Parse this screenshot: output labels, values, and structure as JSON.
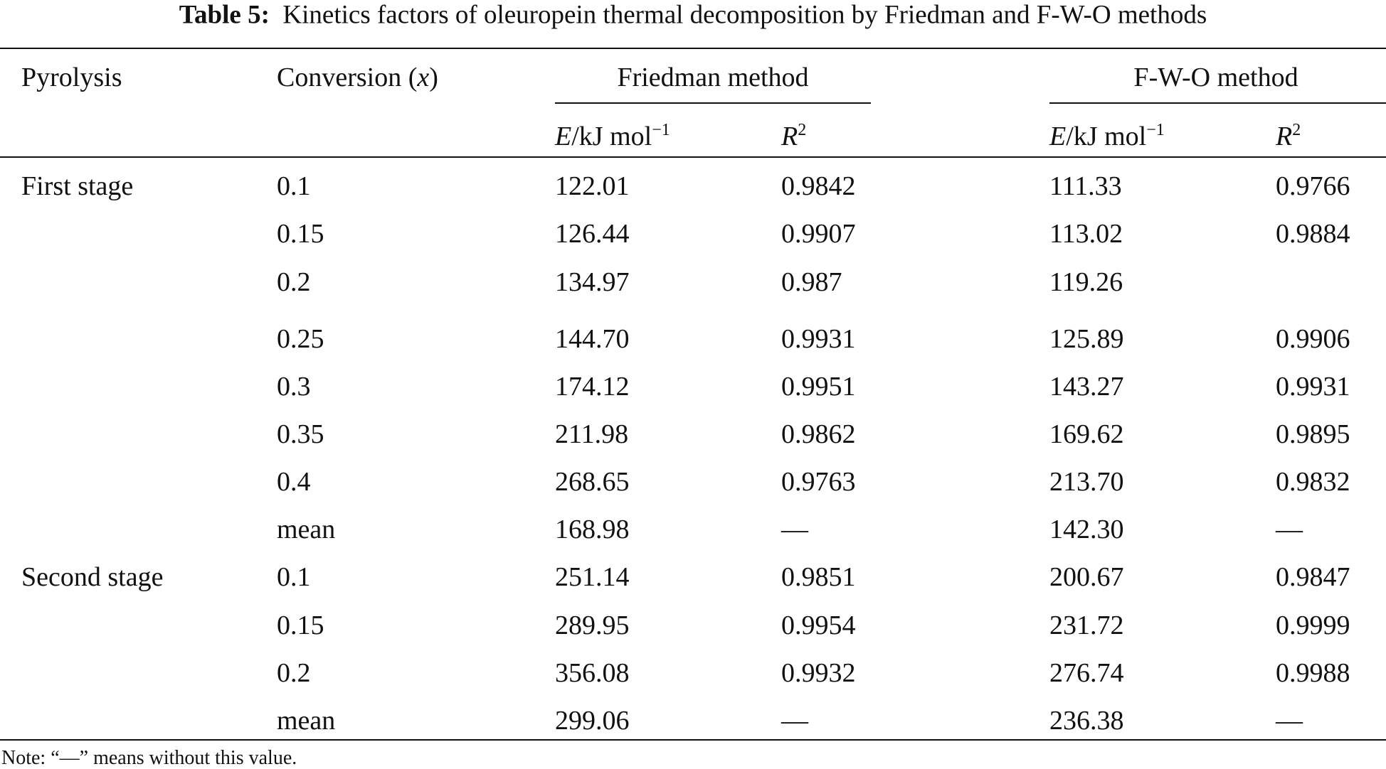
{
  "title": {
    "label": "Table 5:",
    "text": "Kinetics factors of oleuropein thermal decomposition by Friedman and F-W-O methods"
  },
  "table": {
    "headers": {
      "pyrolysis": "Pyrolysis",
      "conversion": {
        "text": "Conversion (",
        "variable": "x",
        "close": ")"
      },
      "friedman": "Friedman method",
      "fwo": "F-W-O method",
      "energy": {
        "symbol": "E",
        "unit": "/kJ mol",
        "exponent": "−1"
      },
      "r2": {
        "symbol": "R",
        "exponent": "2"
      }
    },
    "groups": [
      {
        "stage": "First stage",
        "rows": [
          [
            "0.1",
            "122.01",
            "0.9842",
            "111.33",
            "0.9766"
          ],
          [
            "0.15",
            "126.44",
            "0.9907",
            "113.02",
            "0.9884"
          ],
          [
            "0.2",
            "134.97",
            "0.987",
            "119.26",
            null
          ],
          [
            "0.25",
            "144.70",
            "0.9931",
            "125.89",
            "0.9906"
          ],
          [
            "0.3",
            "174.12",
            "0.9951",
            "143.27",
            "0.9931"
          ],
          [
            "0.35",
            "211.98",
            "0.9862",
            "169.62",
            "0.9895"
          ],
          [
            "0.4",
            "268.65",
            "0.9763",
            "213.70",
            "0.9832"
          ],
          [
            "mean",
            "168.98",
            "—",
            "142.30",
            "—"
          ]
        ]
      },
      {
        "stage": "Second stage",
        "rows": [
          [
            "0.1",
            "251.14",
            "0.9851",
            "200.67",
            "0.9847"
          ],
          [
            "0.15",
            "289.95",
            "0.9954",
            "231.72",
            "0.9999"
          ],
          [
            "0.2",
            "356.08",
            "0.9932",
            "276.74",
            "0.9988"
          ],
          [
            "mean",
            "299.06",
            "—",
            "236.38",
            "—"
          ]
        ]
      }
    ]
  },
  "note": "Note: “—” means without this value."
}
